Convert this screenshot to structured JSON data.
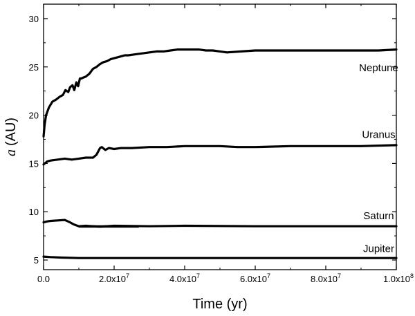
{
  "chart_data": {
    "type": "line",
    "xlabel": "Time (yr)",
    "ylabel": {
      "symbol": "a",
      "unit": "(AU)"
    },
    "xlim": [
      0,
      100000000
    ],
    "ylim": [
      4,
      31.5
    ],
    "x_ticks": [
      {
        "value": 0,
        "mantissa": "0.0",
        "exponent": ""
      },
      {
        "value": 20000000,
        "mantissa": "2.0x10",
        "exponent": "7"
      },
      {
        "value": 40000000,
        "mantissa": "4.0x10",
        "exponent": "7"
      },
      {
        "value": 60000000,
        "mantissa": "6.0x10",
        "exponent": "7"
      },
      {
        "value": 80000000,
        "mantissa": "8.0x10",
        "exponent": "7"
      },
      {
        "value": 100000000,
        "mantissa": "1.0x10",
        "exponent": "8"
      }
    ],
    "y_ticks": [
      5,
      10,
      15,
      20,
      25,
      30
    ],
    "grid": false,
    "legend": "none",
    "series": [
      {
        "name": "Neptune",
        "label_at": [
          95000000,
          24.9
        ],
        "x": [
          0,
          300000,
          700000,
          1500000,
          2500000,
          3500000,
          4500000,
          5500000,
          6200000,
          7000000,
          7500000,
          8200000,
          8700000,
          9300000,
          9800000,
          10300000,
          10700000,
          11300000,
          12000000,
          13000000,
          14000000,
          15000000,
          16000000,
          17000000,
          18000000,
          19000000,
          20000000,
          21000000,
          22000000,
          23000000,
          24000000,
          26000000,
          28000000,
          30000000,
          32000000,
          34000000,
          36000000,
          38000000,
          40000000,
          42000000,
          44000000,
          46000000,
          48000000,
          50000000,
          52000000,
          56000000,
          60000000,
          65000000,
          70000000,
          75000000,
          80000000,
          85000000,
          90000000,
          95000000,
          100000000
        ],
        "values": [
          17.8,
          19.0,
          20.0,
          20.8,
          21.4,
          21.6,
          21.9,
          22.1,
          22.6,
          22.4,
          22.9,
          23.1,
          22.6,
          23.4,
          23.0,
          23.8,
          23.8,
          23.9,
          24.0,
          24.3,
          24.8,
          25.0,
          25.3,
          25.5,
          25.6,
          25.8,
          25.9,
          26.0,
          26.1,
          26.2,
          26.2,
          26.3,
          26.4,
          26.5,
          26.6,
          26.6,
          26.7,
          26.8,
          26.8,
          26.8,
          26.8,
          26.7,
          26.7,
          26.6,
          26.5,
          26.6,
          26.7,
          26.7,
          26.7,
          26.7,
          26.7,
          26.7,
          26.7,
          26.7,
          26.8
        ]
      },
      {
        "name": "Uranus",
        "label_at": [
          95000000,
          18.0
        ],
        "x": [
          0,
          1000000,
          2000000,
          4000000,
          6000000,
          8000000,
          10000000,
          12000000,
          14000000,
          15000000,
          16000000,
          16500000,
          17500000,
          18500000,
          20000000,
          22000000,
          25000000,
          30000000,
          35000000,
          40000000,
          45000000,
          50000000,
          55000000,
          60000000,
          70000000,
          80000000,
          90000000,
          100000000
        ],
        "values": [
          14.9,
          15.2,
          15.3,
          15.4,
          15.5,
          15.4,
          15.5,
          15.6,
          15.6,
          15.9,
          16.6,
          16.7,
          16.4,
          16.6,
          16.5,
          16.6,
          16.6,
          16.7,
          16.7,
          16.8,
          16.8,
          16.8,
          16.7,
          16.7,
          16.8,
          16.8,
          16.8,
          16.9
        ]
      },
      {
        "name": "Saturn",
        "label_at": [
          95000000,
          9.6
        ],
        "x": [
          0,
          1000000,
          2000000,
          4000000,
          6000000,
          7500000,
          8500000,
          10000000,
          12000000,
          16000000,
          20000000,
          30000000,
          40000000,
          60000000,
          80000000,
          100000000
        ],
        "values": [
          8.9,
          9.0,
          9.05,
          9.1,
          9.15,
          8.9,
          8.7,
          8.5,
          8.55,
          8.45,
          8.55,
          8.5,
          8.55,
          8.5,
          8.5,
          8.5
        ],
        "band": {
          "from": 10000000,
          "to": 27000000,
          "low": 8.35,
          "high": 8.6
        }
      },
      {
        "name": "Jupiter",
        "label_at": [
          95000000,
          6.2
        ],
        "x": [
          0,
          2000000,
          5000000,
          10000000,
          20000000,
          40000000,
          60000000,
          80000000,
          100000000
        ],
        "values": [
          5.35,
          5.3,
          5.25,
          5.2,
          5.2,
          5.2,
          5.2,
          5.2,
          5.2
        ]
      }
    ]
  }
}
